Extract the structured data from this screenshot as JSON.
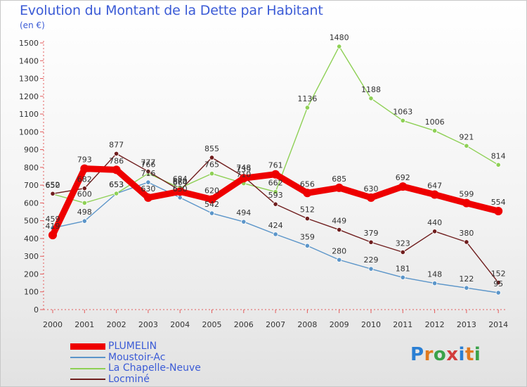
{
  "header": {
    "title": "Evolution du Montant de la Dette par Habitant",
    "unit": "(en €)"
  },
  "logo": {
    "letters": [
      "P",
      "r",
      "o",
      "x",
      "i",
      "t",
      "i"
    ],
    "colors": [
      "#2a7fd4",
      "#e07a1f",
      "#3aa24a",
      "#d23c3c",
      "#2a7fd4",
      "#e07a1f",
      "#3aa24a"
    ]
  },
  "chart_data": {
    "type": "line",
    "x": [
      "2000",
      "2001",
      "2002",
      "2003",
      "2004",
      "2005",
      "2006",
      "2007",
      "2008",
      "2009",
      "2010",
      "2011",
      "2012",
      "2013",
      "2014"
    ],
    "ylim": [
      0,
      1500
    ],
    "yticks": [
      0,
      100,
      200,
      300,
      400,
      500,
      600,
      700,
      800,
      900,
      1000,
      1100,
      1200,
      1300,
      1400,
      1500
    ],
    "grid": false,
    "legend_position": "bottom-left",
    "series": [
      {
        "name": "Moustoir-Ac",
        "color": "#5b95c9",
        "values": [
          459,
          498,
          653,
          716,
          630,
          542,
          494,
          424,
          359,
          280,
          229,
          181,
          148,
          122,
          95
        ],
        "labels": [
          "459",
          "498",
          "653",
          "716",
          "630",
          "542",
          "494",
          "424",
          "359",
          "280",
          "229",
          "181",
          "148",
          "122",
          "95"
        ]
      },
      {
        "name": "La Chapelle-Neuve",
        "color": "#8ed055",
        "values": [
          650,
          600,
          653,
          766,
          684,
          765,
          710,
          662,
          1136,
          1480,
          1188,
          1063,
          1006,
          921,
          814
        ],
        "labels": [
          "650",
          "600",
          "653",
          "766",
          "684",
          "765",
          "710",
          "662",
          "1136",
          "1480",
          "1188",
          "1063",
          "1006",
          "921",
          "814"
        ]
      },
      {
        "name": "Locminé",
        "color": "#6f1d1d",
        "values": [
          652,
          682,
          877,
          777,
          670,
          855,
          748,
          593,
          512,
          449,
          379,
          323,
          440,
          380,
          152
        ],
        "labels": [
          "652",
          "682",
          "877",
          "777",
          "670",
          "855",
          "748",
          "593",
          "512",
          "449",
          "379",
          "323",
          "440",
          "380",
          "152"
        ]
      },
      {
        "name": "PLUMELIN",
        "color": "#ee0000",
        "values": [
          419,
          793,
          786,
          630,
          664,
          620,
          739,
          761,
          656,
          685,
          630,
          692,
          647,
          599,
          554
        ],
        "labels": [
          "419",
          "793",
          "786",
          "630",
          "664",
          "620",
          "739",
          "761",
          "656",
          "685",
          "630",
          "692",
          "647",
          "599",
          "554"
        ]
      }
    ],
    "legend_order": [
      "PLUMELIN",
      "Moustoir-Ac",
      "La Chapelle-Neuve",
      "Locminé"
    ]
  }
}
